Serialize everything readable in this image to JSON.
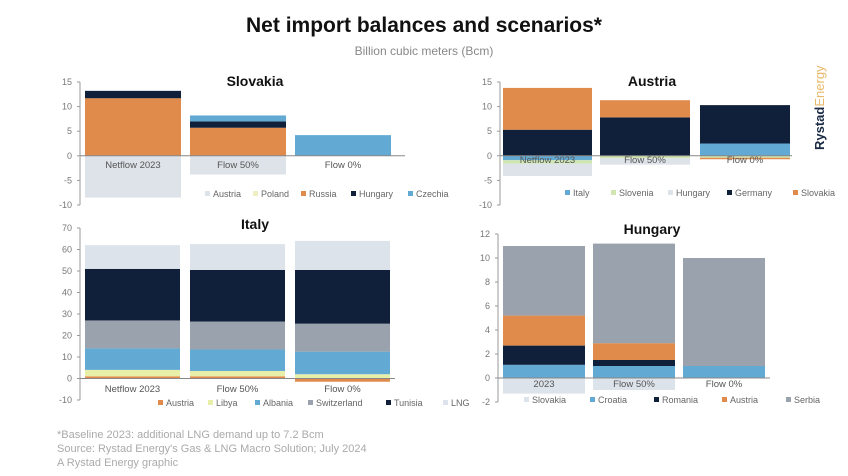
{
  "header": {
    "title": "Net import balances and scenarios*",
    "subtitle": "Billion cubic meters (Bcm)"
  },
  "logo": {
    "part1": "Rystad",
    "part2": "Energy"
  },
  "footer": {
    "note": "*Baseline 2023: additional LNG demand up to 7.2 Bcm",
    "source": "Source: Rystad Energy's Gas & LNG Macro Solution; July 2024",
    "credit": "A Rystad Energy graphic"
  },
  "chart_data": [
    {
      "type": "bar",
      "stacked": true,
      "title": "Slovakia",
      "ylim": [
        -10,
        15
      ],
      "yticks": [
        15,
        10,
        5,
        0,
        -5,
        -10
      ],
      "categories": [
        "Netflow 2023",
        "Flow 50%",
        "Flow 0%"
      ],
      "legend": "bottom",
      "series": [
        {
          "name": "Austria",
          "color": "#dde3e8",
          "values": [
            -8.5,
            -3.8,
            0
          ]
        },
        {
          "name": "Poland",
          "color": "#eef0c4",
          "values": [
            0,
            0,
            0
          ]
        },
        {
          "name": "Russia",
          "color": "#e08a4c",
          "values": [
            11.7,
            5.7,
            0
          ]
        },
        {
          "name": "Hungary",
          "color": "#10203a",
          "values": [
            1.5,
            1.3,
            0
          ]
        },
        {
          "name": "Czechia",
          "color": "#62a9d4",
          "values": [
            0,
            1.2,
            4.2
          ]
        }
      ]
    },
    {
      "type": "bar",
      "stacked": true,
      "title": "Austria",
      "ylim": [
        -10,
        15
      ],
      "yticks": [
        15,
        10,
        5,
        0,
        -5,
        -10
      ],
      "categories": [
        "Netflow 2023",
        "Flow 50%",
        "Flow 0%"
      ],
      "legend": "bottom",
      "series": [
        {
          "name": "Italy",
          "color": "#62a9d4",
          "values": [
            -0.9,
            0,
            2.5
          ]
        },
        {
          "name": "Slovenia",
          "color": "#cfe6b0",
          "values": [
            -0.7,
            -0.5,
            -0.4
          ]
        },
        {
          "name": "Hungary",
          "color": "#dde3e8",
          "values": [
            -2.5,
            -1.3,
            0
          ]
        },
        {
          "name": "Germany",
          "color": "#10203a",
          "values": [
            5.3,
            7.8,
            7.8
          ]
        },
        {
          "name": "Slovakia",
          "color": "#e08a4c",
          "values": [
            8.5,
            3.5,
            -0.3
          ]
        }
      ]
    },
    {
      "type": "bar",
      "stacked": true,
      "title": "Italy",
      "ylim": [
        -10,
        70
      ],
      "yticks": [
        70,
        60,
        50,
        40,
        30,
        20,
        10,
        0,
        -10
      ],
      "categories": [
        "Netflow 2023",
        "Flow 50%",
        "Flow 0%"
      ],
      "legend": "bottom",
      "series": [
        {
          "name": "Austria",
          "color": "#e08a4c",
          "values": [
            1,
            1,
            -1.5
          ]
        },
        {
          "name": "Libya",
          "color": "#e8efa8",
          "values": [
            3,
            2.5,
            2
          ]
        },
        {
          "name": "Albania",
          "color": "#62a9d4",
          "values": [
            10,
            10,
            10.5
          ]
        },
        {
          "name": "Switzerland",
          "color": "#9aa3ad",
          "values": [
            13,
            13,
            13
          ]
        },
        {
          "name": "Tunisia",
          "color": "#10203a",
          "values": [
            24,
            24,
            25
          ]
        },
        {
          "name": "LNG",
          "color": "#dde3ea",
          "values": [
            11,
            12,
            13.5
          ]
        }
      ]
    },
    {
      "type": "bar",
      "stacked": true,
      "title": "Hungary",
      "ylim": [
        -2,
        12
      ],
      "yticks": [
        12,
        10,
        8,
        6,
        4,
        2,
        0,
        -2
      ],
      "categories": [
        "2023",
        "Flow 50%",
        "Flow 0%"
      ],
      "legend": "bottom",
      "series": [
        {
          "name": "Slovakia",
          "color": "#dde3ea",
          "values": [
            -1.3,
            -1.0,
            0
          ]
        },
        {
          "name": "Croatia",
          "color": "#62a9d4",
          "values": [
            1.1,
            1.0,
            1.0
          ]
        },
        {
          "name": "Romania",
          "color": "#10203a",
          "values": [
            1.6,
            0.5,
            0
          ]
        },
        {
          "name": "Austria",
          "color": "#e08a4c",
          "values": [
            2.5,
            1.4,
            0
          ]
        },
        {
          "name": "Serbia",
          "color": "#9aa3ad",
          "values": [
            5.8,
            8.3,
            9.0
          ]
        }
      ]
    }
  ]
}
